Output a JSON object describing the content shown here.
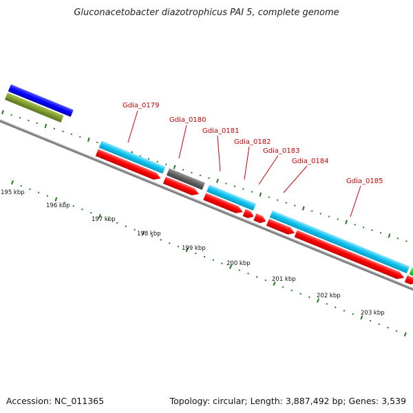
{
  "title": "Gluconacetobacter diazotrophicus PAI 5, complete genome",
  "footer": {
    "accession": "Accession: NC_011365",
    "genome_info": "Topology: circular; Length: 3,887,492 bp; Genes: 3,539"
  },
  "colors": {
    "cds_forward": "#ff0000",
    "gene": "#11c4f0",
    "gene_other": "#606060",
    "backbone": "#808080",
    "tick": "#1a7a1a",
    "label": "#cc0000"
  },
  "gene_labels": [
    "Gdia_0179",
    "Gdia_0180",
    "Gdia_0181",
    "Gdia_0182",
    "Gdia_0183",
    "Gdia_0184",
    "Gdia_0185"
  ],
  "kbp_labels": [
    "195 kbp",
    "196 kbp",
    "197 kbp",
    "198 kbp",
    "199 kbp",
    "200 kbp",
    "201 kbp",
    "202 kbp",
    "203 kbp"
  ]
}
